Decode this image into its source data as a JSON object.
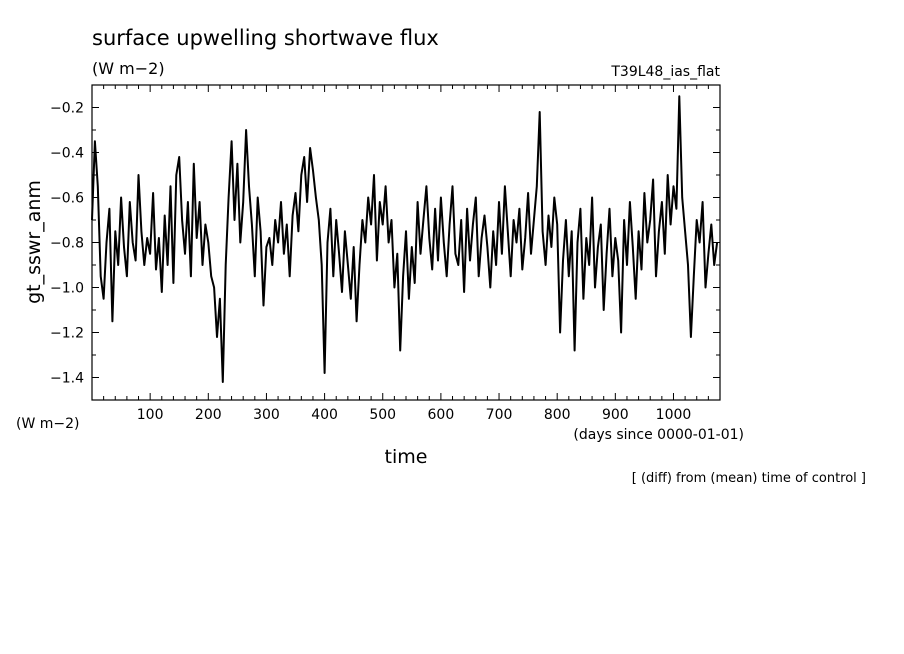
{
  "chart_data": {
    "type": "line",
    "title": "surface upwelling shortwave flux",
    "title_units": "(W m−2)",
    "run_label": "T39L48_ias_flat",
    "xlabel": "time",
    "xunits": "(days since 0000-01-01)",
    "ylabel": "gt_sswr_anm",
    "yunits": "(W m−2)",
    "footnote": "[ (diff) from (mean) time of control ]",
    "xlim": [
      0,
      1080
    ],
    "ylim": [
      -1.5,
      -0.1
    ],
    "x_ticks": [
      100,
      200,
      300,
      400,
      500,
      600,
      700,
      800,
      900,
      1000
    ],
    "y_ticks": [
      -0.2,
      -0.4,
      -0.6,
      -0.8,
      -1.0,
      -1.2,
      -1.4
    ],
    "y_tick_labels": [
      "−0.2",
      "−0.4",
      "−0.6",
      "−0.8",
      "−1.0",
      "−1.2",
      "−1.4"
    ],
    "line_color": "#000000",
    "series": [
      {
        "x": [
          0,
          5,
          10,
          15,
          20,
          25,
          30,
          35,
          40,
          45,
          50,
          55,
          60,
          65,
          70,
          75,
          80,
          85,
          90,
          95,
          100,
          105,
          110,
          115,
          120,
          125,
          130,
          135,
          140,
          145,
          150,
          155,
          160,
          165,
          170,
          175,
          180,
          185,
          190,
          195,
          200,
          205,
          210,
          215,
          220,
          225,
          230,
          235,
          240,
          245,
          250,
          255,
          260,
          265,
          270,
          275,
          280,
          285,
          290,
          295,
          300,
          305,
          310,
          315,
          320,
          325,
          330,
          335,
          340,
          345,
          350,
          355,
          360,
          365,
          370,
          375,
          380,
          385,
          390,
          395,
          400,
          405,
          410,
          415,
          420,
          425,
          430,
          435,
          440,
          445,
          450,
          455,
          460,
          465,
          470,
          475,
          480,
          485,
          490,
          495,
          500,
          505,
          510,
          515,
          520,
          525,
          530,
          535,
          540,
          545,
          550,
          555,
          560,
          565,
          570,
          575,
          580,
          585,
          590,
          595,
          600,
          605,
          610,
          615,
          620,
          625,
          630,
          635,
          640,
          645,
          650,
          655,
          660,
          665,
          670,
          675,
          680,
          685,
          690,
          695,
          700,
          705,
          710,
          715,
          720,
          725,
          730,
          735,
          740,
          745,
          750,
          755,
          760,
          765,
          770,
          775,
          780,
          785,
          790,
          795,
          800,
          805,
          810,
          815,
          820,
          825,
          830,
          835,
          840,
          845,
          850,
          855,
          860,
          865,
          870,
          875,
          880,
          885,
          890,
          895,
          900,
          905,
          910,
          915,
          920,
          925,
          930,
          935,
          940,
          945,
          950,
          955,
          960,
          965,
          970,
          975,
          980,
          985,
          990,
          995,
          1000,
          1005,
          1010,
          1015,
          1020,
          1025,
          1030,
          1035,
          1040,
          1045,
          1050,
          1055,
          1060,
          1065,
          1070,
          1075
        ],
        "values": [
          -0.7,
          -0.35,
          -0.55,
          -0.95,
          -1.05,
          -0.8,
          -0.65,
          -1.15,
          -0.75,
          -0.9,
          -0.6,
          -0.82,
          -0.95,
          -0.62,
          -0.8,
          -0.88,
          -0.5,
          -0.75,
          -0.9,
          -0.78,
          -0.85,
          -0.58,
          -0.92,
          -0.78,
          -1.02,
          -0.68,
          -0.9,
          -0.55,
          -0.98,
          -0.5,
          -0.42,
          -0.7,
          -0.85,
          -0.62,
          -0.95,
          -0.45,
          -0.78,
          -0.62,
          -0.9,
          -0.72,
          -0.8,
          -0.95,
          -1.0,
          -1.22,
          -1.05,
          -1.42,
          -0.9,
          -0.6,
          -0.35,
          -0.7,
          -0.45,
          -0.8,
          -0.62,
          -0.3,
          -0.55,
          -0.72,
          -0.95,
          -0.6,
          -0.75,
          -1.08,
          -0.82,
          -0.78,
          -0.9,
          -0.7,
          -0.8,
          -0.62,
          -0.85,
          -0.72,
          -0.95,
          -0.68,
          -0.58,
          -0.75,
          -0.5,
          -0.42,
          -0.62,
          -0.38,
          -0.48,
          -0.6,
          -0.7,
          -0.9,
          -1.38,
          -0.8,
          -0.65,
          -0.95,
          -0.7,
          -0.85,
          -1.02,
          -0.75,
          -0.9,
          -1.05,
          -0.82,
          -1.15,
          -0.9,
          -0.7,
          -0.8,
          -0.6,
          -0.72,
          -0.5,
          -0.88,
          -0.62,
          -0.72,
          -0.55,
          -0.8,
          -0.7,
          -1.0,
          -0.85,
          -1.28,
          -0.95,
          -0.75,
          -1.05,
          -0.82,
          -0.98,
          -0.62,
          -0.85,
          -0.7,
          -0.55,
          -0.78,
          -0.92,
          -0.65,
          -0.88,
          -0.6,
          -0.8,
          -0.95,
          -0.72,
          -0.55,
          -0.85,
          -0.9,
          -0.7,
          -1.02,
          -0.65,
          -0.88,
          -0.72,
          -0.6,
          -0.95,
          -0.78,
          -0.68,
          -0.82,
          -1.0,
          -0.75,
          -0.9,
          -0.62,
          -0.85,
          -0.55,
          -0.75,
          -0.95,
          -0.7,
          -0.8,
          -0.65,
          -0.92,
          -0.78,
          -0.58,
          -0.85,
          -0.7,
          -0.55,
          -0.22,
          -0.75,
          -0.9,
          -0.68,
          -0.82,
          -0.6,
          -0.72,
          -1.2,
          -0.88,
          -0.7,
          -0.95,
          -0.75,
          -1.28,
          -0.8,
          -0.65,
          -1.05,
          -0.78,
          -0.9,
          -0.6,
          -1.0,
          -0.82,
          -0.72,
          -1.1,
          -0.85,
          -0.65,
          -0.95,
          -0.78,
          -0.88,
          -1.2,
          -0.7,
          -0.9,
          -0.62,
          -0.82,
          -1.05,
          -0.75,
          -0.92,
          -0.58,
          -0.8,
          -0.7,
          -0.52,
          -0.95,
          -0.75,
          -0.62,
          -0.85,
          -0.5,
          -0.72,
          -0.55,
          -0.65,
          -0.15,
          -0.6,
          -0.75,
          -0.9,
          -1.22,
          -0.95,
          -0.7,
          -0.8,
          -0.62,
          -1.0,
          -0.85,
          -0.72,
          -0.9,
          -0.8
        ]
      }
    ]
  }
}
